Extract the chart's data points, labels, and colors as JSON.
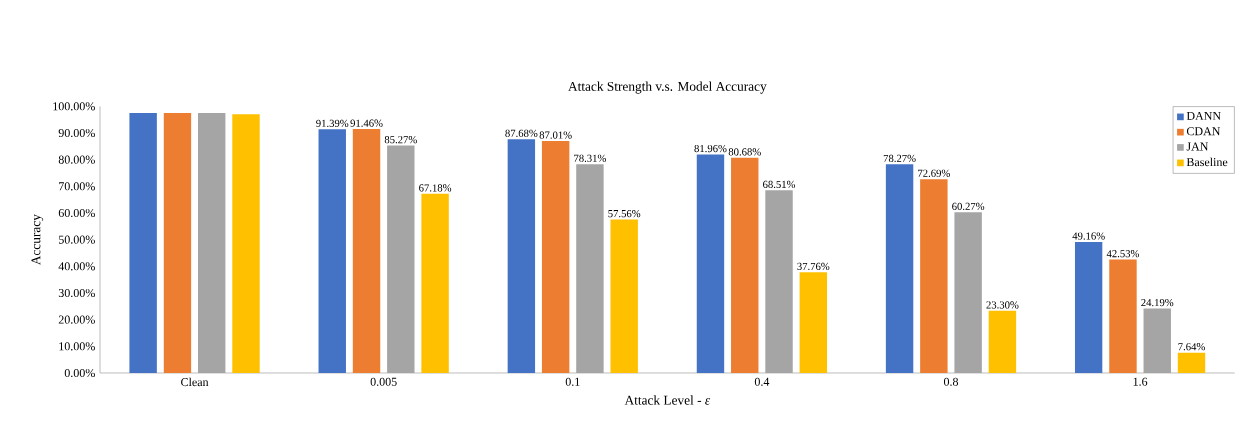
{
  "chart_data": {
    "type": "bar",
    "title": "Attack Strength v.s. Model Accuracy",
    "xlabel": "Attack Level - *ε*",
    "ylabel": "Accuracy",
    "categories": [
      "Clean",
      "0.005",
      "0.1",
      "0.4",
      "0.8",
      "1.6"
    ],
    "series": [
      {
        "name": "DANN",
        "color": "#4472c4",
        "values": [
          97.5,
          91.39,
          87.68,
          81.96,
          78.27,
          49.16
        ],
        "value_labels": [
          null,
          "91.39%",
          "87.68%",
          "81.96%",
          "78.27%",
          "49.16%"
        ]
      },
      {
        "name": "CDAN",
        "color": "#ed7d31",
        "values": [
          97.5,
          91.46,
          87.01,
          80.68,
          72.69,
          42.53
        ],
        "value_labels": [
          null,
          "91.46%",
          "87.01%",
          "80.68%",
          "72.69%",
          "42.53%"
        ]
      },
      {
        "name": "JAN",
        "color": "#a5a5a5",
        "values": [
          97.5,
          85.27,
          78.31,
          68.51,
          60.27,
          24.19
        ],
        "value_labels": [
          null,
          "85.27%",
          "78.31%",
          "68.51%",
          "60.27%",
          "24.19%"
        ]
      },
      {
        "name": "Baseline",
        "color": "#ffc000",
        "values": [
          97.0,
          67.18,
          57.56,
          37.76,
          23.3,
          7.64
        ],
        "value_labels": [
          null,
          "67.18%",
          "57.56%",
          "37.76%",
          "23.30%",
          "7.64%"
        ]
      }
    ],
    "ylim": [
      0,
      100
    ],
    "yticks": [
      {
        "value": 0,
        "label": "0.00%"
      },
      {
        "value": 10,
        "label": "10.00%"
      },
      {
        "value": 20,
        "label": "20.00%"
      },
      {
        "value": 30,
        "label": "30.00%"
      },
      {
        "value": 40,
        "label": "40.00%"
      },
      {
        "value": 50,
        "label": "50.00%"
      },
      {
        "value": 60,
        "label": "60.00%"
      },
      {
        "value": 70,
        "label": "70.00%"
      },
      {
        "value": 80,
        "label": "80.00%"
      },
      {
        "value": 90,
        "label": "90.00%"
      },
      {
        "value": 100,
        "label": "100.00%"
      }
    ],
    "legend": "top right"
  }
}
